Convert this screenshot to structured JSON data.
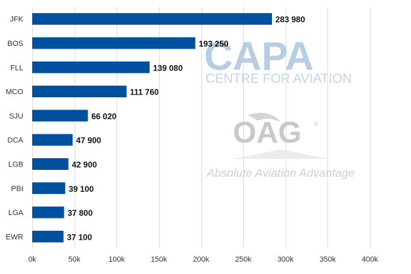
{
  "chart_data": {
    "type": "bar",
    "orientation": "horizontal",
    "categories": [
      "JFK",
      "BOS",
      "FLL",
      "MCO",
      "SJU",
      "DCA",
      "LGB",
      "PBI",
      "LGA",
      "EWR"
    ],
    "values": [
      283980,
      193250,
      139080,
      111760,
      66020,
      47900,
      42900,
      39100,
      37800,
      37100
    ],
    "data_labels": [
      "283 980",
      "193 250",
      "139 080",
      "111 760",
      "66 020",
      "47 900",
      "42 900",
      "39 100",
      "37 800",
      "37 100"
    ],
    "xlim": [
      0,
      400000
    ],
    "x_ticks": [
      0,
      50000,
      100000,
      150000,
      200000,
      250000,
      300000,
      350000,
      400000
    ],
    "x_tick_labels": [
      "0k",
      "50k",
      "100k",
      "150k",
      "200k",
      "250k",
      "300k",
      "350k",
      "400k"
    ],
    "title": "",
    "xlabel": "",
    "ylabel": "",
    "grid": "vertical",
    "bar_color": "#0050a0"
  },
  "watermarks": {
    "capa_logo": "CAPA",
    "capa_tagline": "CENTRE FOR AVIATION",
    "oag_logo": "OAG",
    "oag_registered": "®",
    "oag_tagline": "Absolute Aviation Advantage"
  },
  "colors": {
    "grid": "#dddddd",
    "capa": "#b7cde4",
    "oag": "#c8c8c8"
  }
}
